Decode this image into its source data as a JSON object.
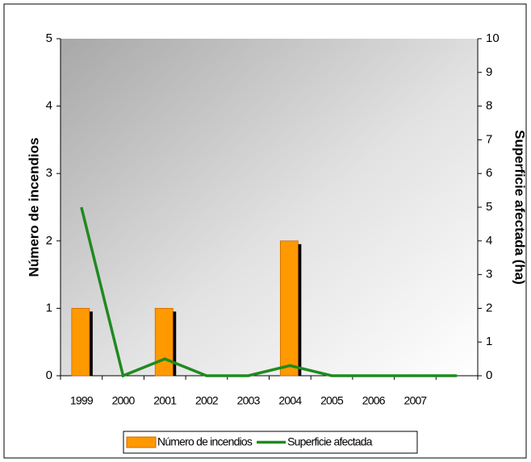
{
  "chart_data": {
    "type": "bar",
    "categories": [
      "1999",
      "2000",
      "2001",
      "2002",
      "2003",
      "2004",
      "2005",
      "2006",
      "2007",
      null
    ],
    "series": [
      {
        "name": "Número de incendios",
        "type": "bar",
        "color": "#ff9900",
        "values": [
          1,
          0,
          1,
          0,
          0,
          2,
          0,
          0,
          0,
          0
        ]
      },
      {
        "name": "Superficie afectada",
        "type": "line",
        "axis": "y2",
        "color": "#1f8a1f",
        "values": [
          5,
          0,
          0.5,
          0,
          0,
          0.3,
          0,
          0,
          0,
          0
        ]
      }
    ],
    "ylabel": "Número de incendios",
    "y2label": "Superficie afectada (ha)",
    "ylim": [
      0,
      5
    ],
    "yticks": [
      0,
      1,
      2,
      3,
      4,
      5
    ],
    "y2lim": [
      0,
      10
    ],
    "y2ticks": [
      0,
      1,
      2,
      3,
      4,
      5,
      6,
      7,
      8,
      9,
      10
    ],
    "legend": "bottom"
  }
}
